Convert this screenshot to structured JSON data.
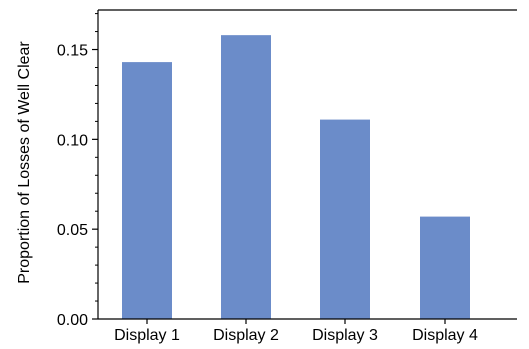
{
  "chart_data": {
    "type": "bar",
    "title": "",
    "xlabel": "",
    "ylabel": "Proportion of Losses of Well Clear",
    "categories": [
      "Display 1",
      "Display 2",
      "Display 3",
      "Display 4"
    ],
    "values": [
      0.143,
      0.158,
      0.111,
      0.057
    ],
    "ylim": [
      0,
      0.172
    ],
    "yticks": [
      0.0,
      0.05,
      0.1,
      0.15
    ],
    "ytick_labels": [
      "0.00",
      "0.05",
      "0.10",
      "0.15"
    ],
    "grid": false,
    "bar_color": "#6b8cc9"
  }
}
